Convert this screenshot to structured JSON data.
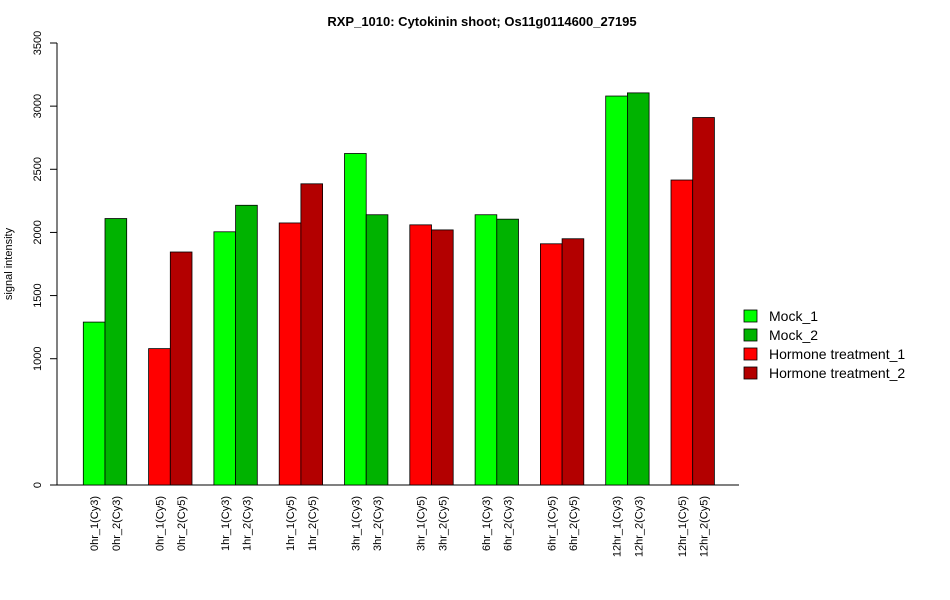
{
  "chart_data": {
    "type": "bar",
    "title": "RXP_1010: Cytokinin shoot; Os11g0114600_27195",
    "xlabel": "",
    "ylabel": "signal intensity",
    "y_ticks": [
      0,
      1000,
      1500,
      2000,
      2500,
      3000,
      3500
    ],
    "ylim": [
      0,
      3500
    ],
    "grid": false,
    "legend_position": "right",
    "categories": [
      "0hr_1(Cy3)",
      "0hr_2(Cy3)",
      "0hr_1(Cy5)",
      "0hr_2(Cy5)",
      "1hr_1(Cy3)",
      "1hr_2(Cy3)",
      "1hr_1(Cy5)",
      "1hr_2(Cy5)",
      "3hr_1(Cy3)",
      "3hr_2(Cy3)",
      "3hr_1(Cy5)",
      "3hr_2(Cy5)",
      "6hr_1(Cy3)",
      "6hr_2(Cy3)",
      "6hr_1(Cy5)",
      "6hr_2(Cy5)",
      "12hr_1(Cy3)",
      "12hr_2(Cy3)",
      "12hr_1(Cy5)",
      "12hr_2(Cy5)"
    ],
    "values": [
      1290,
      2110,
      1080,
      1845,
      2005,
      2215,
      2075,
      2385,
      2625,
      2140,
      2060,
      2020,
      2140,
      2105,
      1910,
      1950,
      3080,
      3105,
      2415,
      2910
    ],
    "bar_series": [
      0,
      1,
      2,
      3,
      0,
      1,
      2,
      3,
      0,
      1,
      2,
      3,
      0,
      1,
      2,
      3,
      0,
      1,
      2,
      3
    ],
    "legend": [
      {
        "name": "Mock_1",
        "color": "#00ff00"
      },
      {
        "name": "Mock_2",
        "color": "#00b300"
      },
      {
        "name": "Hormone treatment_1",
        "color": "#ff0000"
      },
      {
        "name": "Hormone treatment_2",
        "color": "#b30000"
      }
    ]
  }
}
